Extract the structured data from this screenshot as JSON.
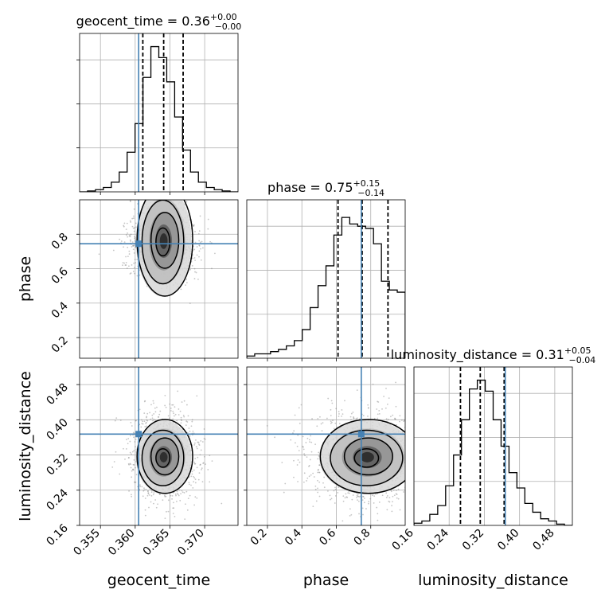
{
  "chart_data": {
    "type": "corner",
    "truth_color": "#4682b4",
    "parameters": [
      {
        "name": "geocent_time",
        "xlabel": "geocent_time",
        "ylabel": "",
        "range": [
          0.352,
          0.3748
        ],
        "ticks": [
          0.355,
          0.36,
          0.365,
          0.37
        ],
        "tick_labels": [
          "0.355",
          "0.360",
          "0.365",
          "0.370"
        ],
        "truth": 0.3605,
        "quantiles": [
          0.3611,
          0.3641,
          0.3669
        ],
        "title": {
          "label": "geocent_time = 0.36",
          "sup": "+0.00",
          "sub": "−0.00"
        },
        "histogram": {
          "bin_edges": [
            0.352,
            0.35314,
            0.35428,
            0.35542,
            0.35656,
            0.3577,
            0.35884,
            0.35998,
            0.36112,
            0.36226,
            0.3634,
            0.36454,
            0.36568,
            0.36682,
            0.36796,
            0.3691,
            0.37024,
            0.37138,
            0.37252,
            0.37366,
            0.3748
          ],
          "counts": [
            0.0,
            0.02,
            0.05,
            0.1,
            0.22,
            0.45,
            0.9,
            1.55,
            2.6,
            3.3,
            3.05,
            2.5,
            1.7,
            0.95,
            0.45,
            0.22,
            0.1,
            0.05,
            0.02,
            0.0
          ],
          "ylim": [
            0,
            3.6
          ]
        }
      },
      {
        "name": "phase",
        "xlabel": "phase",
        "ylabel": "phase",
        "range": [
          0.08,
          1.0
        ],
        "ticks": [
          0.2,
          0.4,
          0.6,
          0.8
        ],
        "tick_labels": [
          "0.2",
          "0.4",
          "0.6",
          "0.8"
        ],
        "truth": 0.745,
        "quantiles": [
          0.61,
          0.75,
          0.9
        ],
        "title": {
          "label": "phase = 0.75",
          "sup": "+0.15",
          "sub": "−0.14"
        },
        "histogram": {
          "bin_edges": [
            0.08,
            0.126,
            0.172,
            0.218,
            0.264,
            0.31,
            0.356,
            0.402,
            0.448,
            0.494,
            0.54,
            0.586,
            0.632,
            0.678,
            0.724,
            0.77,
            0.816,
            0.862,
            0.908,
            0.954,
            1.0
          ],
          "counts": [
            0.05,
            0.1,
            0.1,
            0.15,
            0.2,
            0.28,
            0.4,
            0.65,
            1.15,
            1.65,
            2.1,
            2.8,
            3.2,
            3.05,
            3.0,
            2.95,
            2.6,
            1.75,
            1.55,
            1.5
          ],
          "ylim": [
            0,
            3.6
          ]
        }
      },
      {
        "name": "luminosity_distance",
        "xlabel": "luminosity_distance",
        "ylabel": "luminosity_distance",
        "range": [
          0.16,
          0.52
        ],
        "ticks": [
          0.16,
          0.24,
          0.32,
          0.4,
          0.48
        ],
        "tick_labels": [
          "0.16",
          "0.24",
          "0.32",
          "0.40",
          "0.48"
        ],
        "truth": 0.3675,
        "quantiles": [
          0.2657,
          0.3107,
          0.365
        ],
        "title": {
          "label": "luminosity_distance = 0.31",
          "sup": "+0.05",
          "sub": "−0.04"
        },
        "histogram": {
          "bin_edges": [
            0.16,
            0.178,
            0.196,
            0.214,
            0.232,
            0.25,
            0.268,
            0.286,
            0.304,
            0.322,
            0.34,
            0.358,
            0.376,
            0.394,
            0.412,
            0.43,
            0.448,
            0.466,
            0.484,
            0.502,
            0.52
          ],
          "counts": [
            0.05,
            0.1,
            0.25,
            0.45,
            0.9,
            1.6,
            2.4,
            3.1,
            3.3,
            3.05,
            2.4,
            1.8,
            1.2,
            0.85,
            0.5,
            0.3,
            0.15,
            0.1,
            0.03,
            0.0
          ],
          "ylim": [
            0,
            3.6
          ]
        }
      }
    ],
    "pairs": [
      {
        "x": "geocent_time",
        "y": "phase",
        "center": [
          0.3641,
          0.73
        ],
        "sigma": [
          0.002,
          0.12
        ],
        "upper_extend": true
      },
      {
        "x": "geocent_time",
        "y": "luminosity_distance",
        "center": [
          0.3641,
          0.315
        ],
        "sigma": [
          0.002,
          0.042
        ],
        "upper_extend": false
      },
      {
        "x": "phase",
        "y": "luminosity_distance",
        "center": [
          0.78,
          0.315
        ],
        "sigma": [
          0.14,
          0.042
        ],
        "upper_extend": false
      }
    ]
  }
}
